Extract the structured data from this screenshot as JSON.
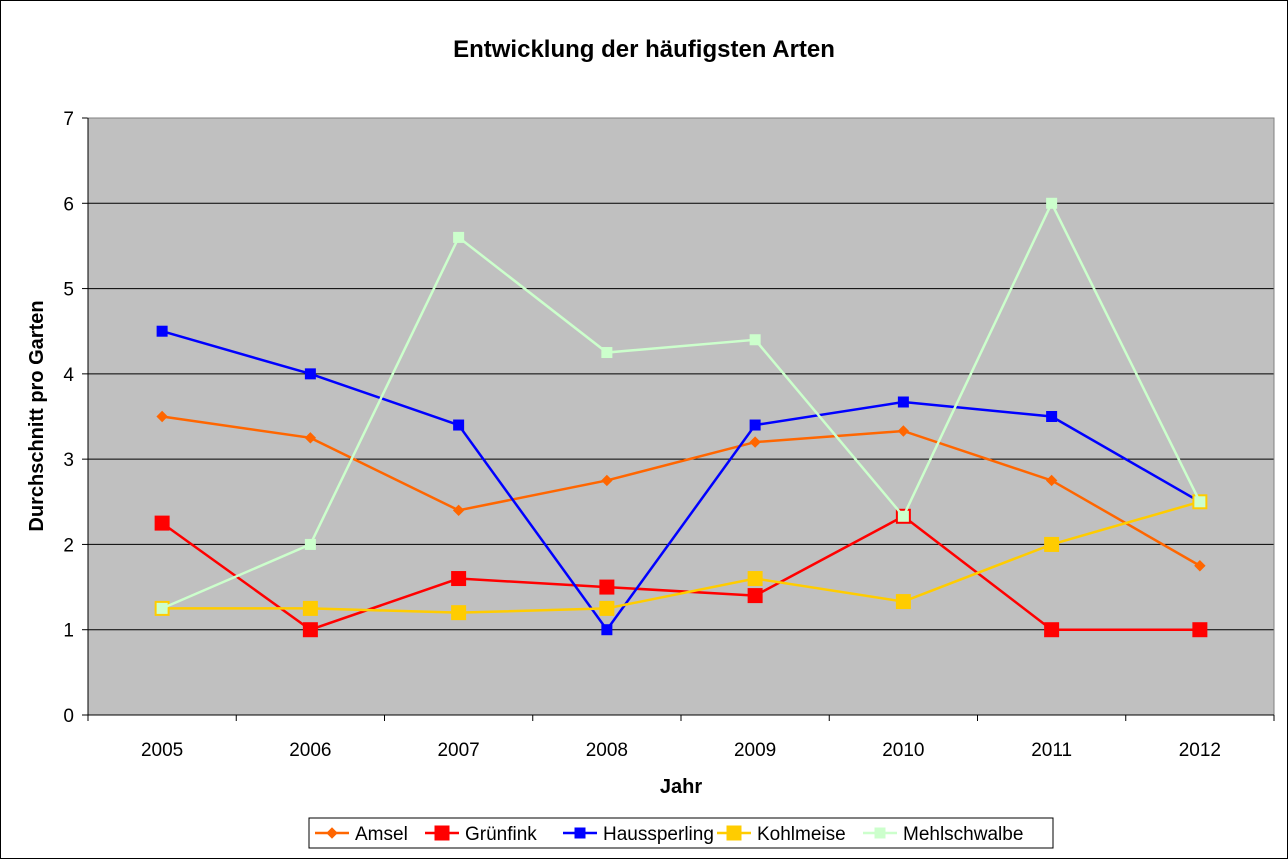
{
  "chart_data": {
    "type": "line",
    "title": "Entwicklung der häufigsten Arten",
    "xlabel": "Jahr",
    "ylabel": "Durchschnitt pro Garten",
    "categories": [
      "2005",
      "2006",
      "2007",
      "2008",
      "2009",
      "2010",
      "2011",
      "2012"
    ],
    "ylim": [
      0,
      7
    ],
    "yticks": [
      "0",
      "1",
      "2",
      "3",
      "4",
      "5",
      "6",
      "7"
    ],
    "grid": true,
    "legend_position": "bottom",
    "plot_background": "#c0c0c0",
    "series": [
      {
        "name": "Amsel",
        "color": "#ff6600",
        "marker": "diamond",
        "values": [
          3.5,
          3.25,
          2.4,
          2.75,
          3.2,
          3.33,
          2.75,
          1.75
        ]
      },
      {
        "name": "Grünfink",
        "color": "#ff0000",
        "marker": "square-large",
        "values": [
          2.25,
          1.0,
          1.6,
          1.5,
          1.4,
          2.33,
          1.0,
          1.0
        ]
      },
      {
        "name": "Haussperling",
        "color": "#0000ff",
        "marker": "square",
        "values": [
          4.5,
          4.0,
          3.4,
          1.0,
          3.4,
          3.67,
          3.5,
          2.5
        ]
      },
      {
        "name": "Kohlmeise",
        "color": "#ffcc00",
        "marker": "square-large",
        "values": [
          1.25,
          1.25,
          1.2,
          1.25,
          1.6,
          1.33,
          2.0,
          2.5
        ]
      },
      {
        "name": "Mehlschwalbe",
        "color": "#ccffcc",
        "marker": "square",
        "values": [
          1.25,
          2.0,
          5.6,
          4.25,
          4.4,
          2.33,
          6.0,
          2.5
        ]
      }
    ]
  }
}
